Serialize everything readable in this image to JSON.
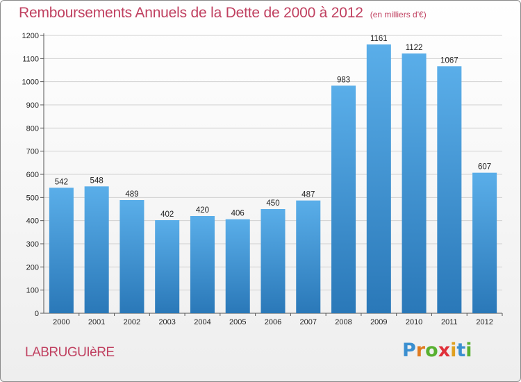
{
  "title": "Remboursements Annuels de la Dette de 2000 à 2012",
  "unit_note": "(en milliers d'€)",
  "commune": "LABRUGUIèRE",
  "logo": {
    "letters": [
      {
        "ch": "P",
        "color": "#3a8fd0"
      },
      {
        "ch": "r",
        "color": "#e07b20"
      },
      {
        "ch": "o",
        "color": "#58b030"
      },
      {
        "ch": "x",
        "color": "#e0303a"
      },
      {
        "ch": "i",
        "color": "#e0a020"
      },
      {
        "ch": "t",
        "color": "#3a8fd0"
      },
      {
        "ch": "i",
        "color": "#58b030"
      }
    ]
  },
  "colors": {
    "bar_top": "#5aaee9",
    "bar_bottom": "#2a78b8",
    "text_accent": "#c04060"
  },
  "chart_data": {
    "type": "bar",
    "title": "Remboursements Annuels de la Dette de 2000 à 2012",
    "categories": [
      "2000",
      "2001",
      "2002",
      "2003",
      "2004",
      "2005",
      "2006",
      "2007",
      "2008",
      "2009",
      "2010",
      "2011",
      "2012"
    ],
    "values": [
      542,
      548,
      489,
      402,
      420,
      406,
      450,
      487,
      983,
      1161,
      1122,
      1067,
      607
    ],
    "value_labels": [
      "542",
      "548",
      "489",
      "402",
      "420",
      "406",
      "450",
      "487",
      "983",
      "1161",
      "1122",
      "1067",
      "607"
    ],
    "ylim": [
      0,
      1200
    ],
    "yticks": [
      0,
      100,
      200,
      300,
      400,
      500,
      600,
      700,
      800,
      900,
      1000,
      1100,
      1200
    ],
    "grid": true,
    "xlabel": "",
    "ylabel": ""
  }
}
